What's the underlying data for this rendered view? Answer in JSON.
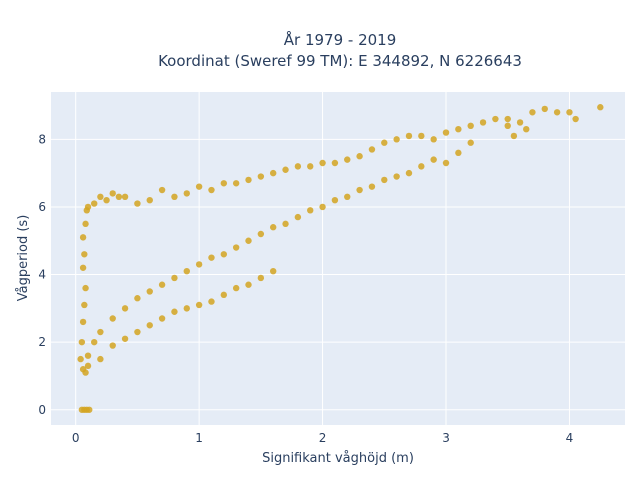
{
  "chart_data": {
    "type": "scatter",
    "title_line1": "År 1979 - 2019",
    "title_line2": "Koordinat (Sweref 99 TM): E 344892, N 6226643",
    "xlabel": "Signifikant våghöjd (m)",
    "ylabel": "Vågperiod (s)",
    "xlim": [
      -0.2,
      4.45
    ],
    "ylim": [
      -0.45,
      9.4
    ],
    "xticks": [
      0,
      1,
      2,
      3,
      4
    ],
    "yticks": [
      0,
      2,
      4,
      6,
      8
    ],
    "grid": true,
    "marker_color": "#d4a421",
    "plot_bg": "#e5ecf6",
    "grid_color": "#ffffff",
    "series": [
      {
        "points": [
          [
            0.05,
            0.0
          ],
          [
            0.07,
            0.0
          ],
          [
            0.09,
            0.0
          ],
          [
            0.11,
            0.0
          ],
          [
            0.04,
            1.5
          ],
          [
            0.06,
            1.2
          ],
          [
            0.08,
            1.1
          ],
          [
            0.1,
            1.3
          ],
          [
            0.05,
            2.0
          ],
          [
            0.06,
            2.6
          ],
          [
            0.07,
            3.1
          ],
          [
            0.08,
            3.6
          ],
          [
            0.06,
            4.2
          ],
          [
            0.07,
            4.6
          ],
          [
            0.06,
            5.1
          ],
          [
            0.08,
            5.5
          ],
          [
            0.09,
            5.9
          ],
          [
            0.1,
            6.0
          ],
          [
            0.15,
            6.1
          ],
          [
            0.2,
            6.3
          ],
          [
            0.25,
            6.2
          ],
          [
            0.3,
            6.4
          ],
          [
            0.35,
            6.3
          ],
          [
            0.4,
            6.3
          ],
          [
            0.5,
            6.1
          ],
          [
            0.6,
            6.2
          ],
          [
            0.7,
            6.5
          ],
          [
            0.8,
            6.3
          ],
          [
            0.9,
            6.4
          ],
          [
            1.0,
            6.6
          ],
          [
            1.1,
            6.5
          ],
          [
            1.2,
            6.7
          ],
          [
            1.3,
            6.7
          ],
          [
            1.4,
            6.8
          ],
          [
            1.5,
            6.9
          ],
          [
            1.6,
            7.0
          ],
          [
            1.7,
            7.1
          ],
          [
            1.8,
            7.2
          ],
          [
            1.9,
            7.2
          ],
          [
            2.0,
            7.3
          ],
          [
            2.1,
            7.3
          ],
          [
            2.2,
            7.4
          ],
          [
            2.3,
            7.5
          ],
          [
            2.4,
            7.7
          ],
          [
            2.5,
            7.9
          ],
          [
            2.6,
            8.0
          ],
          [
            2.7,
            8.1
          ],
          [
            2.8,
            8.1
          ],
          [
            2.9,
            8.0
          ],
          [
            3.0,
            8.2
          ],
          [
            3.1,
            8.3
          ],
          [
            3.2,
            8.4
          ],
          [
            3.3,
            8.5
          ],
          [
            3.4,
            8.6
          ],
          [
            3.5,
            8.6
          ],
          [
            3.6,
            8.5
          ],
          [
            3.7,
            8.8
          ],
          [
            3.8,
            8.9
          ],
          [
            3.9,
            8.8
          ],
          [
            4.0,
            8.8
          ],
          [
            4.05,
            8.6
          ],
          [
            4.25,
            8.95
          ],
          [
            3.65,
            8.3
          ],
          [
            3.55,
            8.1
          ],
          [
            3.5,
            8.4
          ],
          [
            3.2,
            7.9
          ],
          [
            3.1,
            7.6
          ],
          [
            3.0,
            7.3
          ],
          [
            2.9,
            7.4
          ],
          [
            2.8,
            7.2
          ],
          [
            2.7,
            7.0
          ],
          [
            2.6,
            6.9
          ],
          [
            2.5,
            6.8
          ],
          [
            2.4,
            6.6
          ],
          [
            2.3,
            6.5
          ],
          [
            2.2,
            6.3
          ],
          [
            2.1,
            6.2
          ],
          [
            2.0,
            6.0
          ],
          [
            1.9,
            5.9
          ],
          [
            1.8,
            5.7
          ],
          [
            1.7,
            5.5
          ],
          [
            1.6,
            5.4
          ],
          [
            1.5,
            5.2
          ],
          [
            1.4,
            5.0
          ],
          [
            1.3,
            4.8
          ],
          [
            1.2,
            4.6
          ],
          [
            1.1,
            4.5
          ],
          [
            1.0,
            4.3
          ],
          [
            0.9,
            4.1
          ],
          [
            0.8,
            3.9
          ],
          [
            0.7,
            3.7
          ],
          [
            0.6,
            3.5
          ],
          [
            0.5,
            3.3
          ],
          [
            0.4,
            3.0
          ],
          [
            0.3,
            2.7
          ],
          [
            0.2,
            2.3
          ],
          [
            0.15,
            2.0
          ],
          [
            0.1,
            1.6
          ],
          [
            1.6,
            4.1
          ],
          [
            1.5,
            3.9
          ],
          [
            1.4,
            3.7
          ],
          [
            1.3,
            3.6
          ],
          [
            1.2,
            3.4
          ],
          [
            1.1,
            3.2
          ],
          [
            1.0,
            3.1
          ],
          [
            0.9,
            3.0
          ],
          [
            0.8,
            2.9
          ],
          [
            0.7,
            2.7
          ],
          [
            0.6,
            2.5
          ],
          [
            0.5,
            2.3
          ],
          [
            0.4,
            2.1
          ],
          [
            0.3,
            1.9
          ],
          [
            0.2,
            1.5
          ]
        ]
      }
    ]
  }
}
